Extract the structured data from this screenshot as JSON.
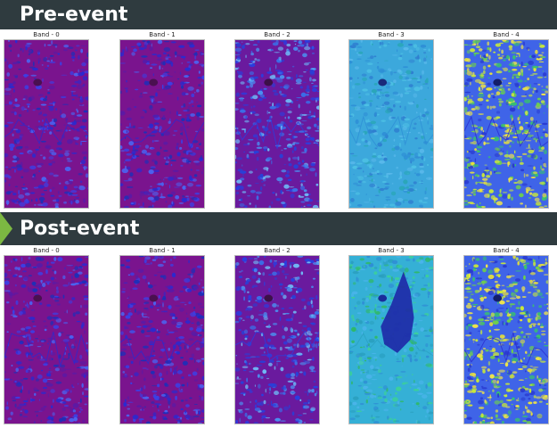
{
  "sections": [
    {
      "title": "Pre-event",
      "bands": [
        {
          "label": "Band - 0",
          "palette": "purple"
        },
        {
          "label": "Band - 1",
          "palette": "purple"
        },
        {
          "label": "Band - 2",
          "palette": "purple-light"
        },
        {
          "label": "Band - 3",
          "palette": "cyan"
        },
        {
          "label": "Band - 4",
          "palette": "rainbow"
        }
      ]
    },
    {
      "title": "Post-event",
      "bands": [
        {
          "label": "Band - 0",
          "palette": "purple"
        },
        {
          "label": "Band - 1",
          "palette": "purple"
        },
        {
          "label": "Band - 2",
          "palette": "purple-light"
        },
        {
          "label": "Band - 3",
          "palette": "cyan-burn"
        },
        {
          "label": "Band - 4",
          "palette": "rainbow"
        }
      ]
    }
  ],
  "colors": {
    "header_bg": "#2f3b3f",
    "header_text": "#ffffff",
    "accent": "#7cb842"
  }
}
